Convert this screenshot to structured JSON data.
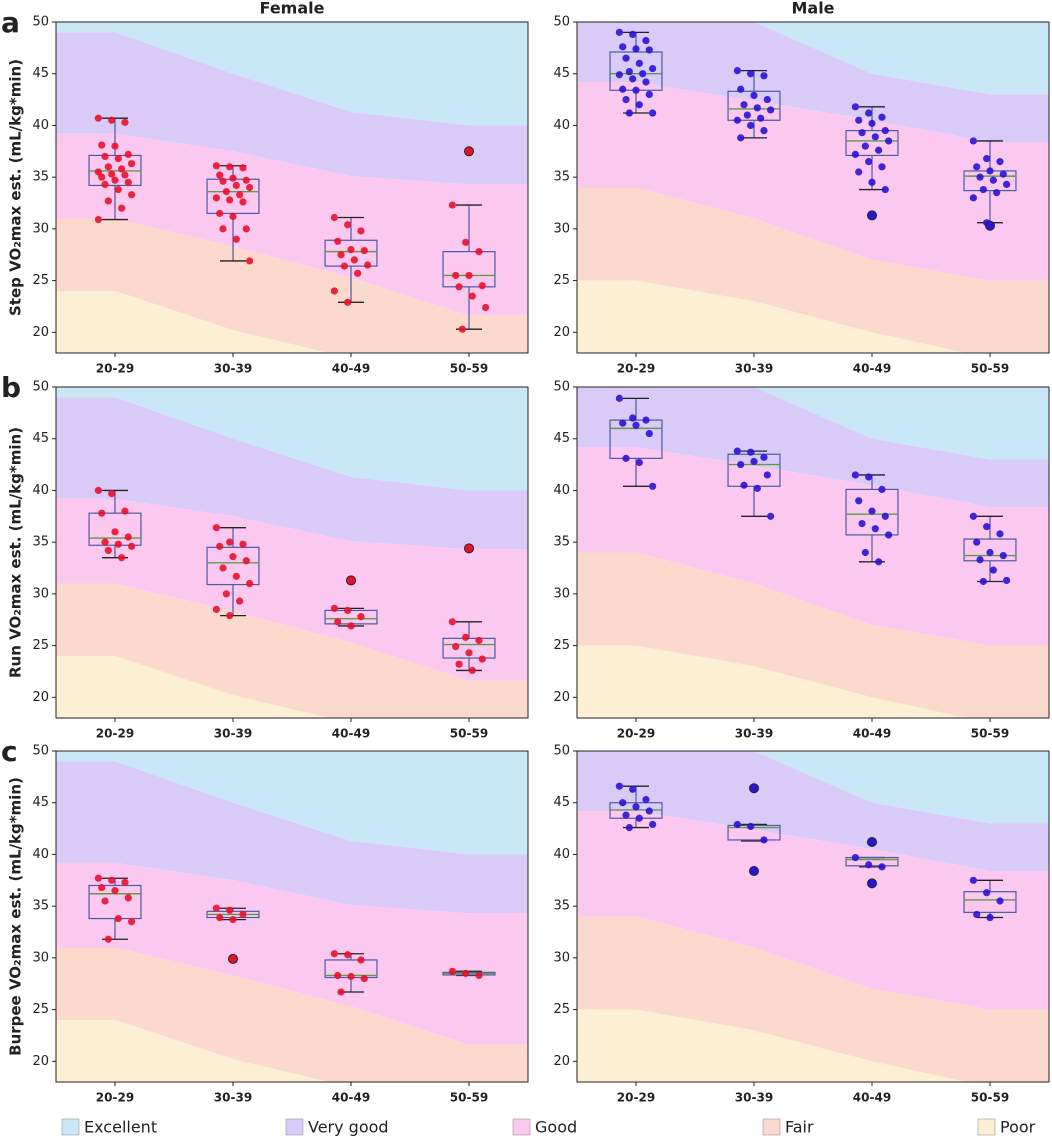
{
  "legend": [
    {
      "name": "Excellent",
      "color": "#c9e7f6"
    },
    {
      "name": "Very good",
      "color": "#dacaf8"
    },
    {
      "name": "Good",
      "color": "#fbc9ef"
    },
    {
      "name": "Fair",
      "color": "#fcd9cd"
    },
    {
      "name": "Poor",
      "color": "#fdefd3"
    }
  ],
  "chart_data": [
    {
      "type": "box",
      "panel": "a",
      "title": "Female",
      "ylabel": "Step VO₂max est. (mL/kg*min)",
      "color": "#e8112d",
      "categories": [
        "20-29",
        "30-39",
        "40-49",
        "50-59"
      ],
      "ylim": [
        18,
        50
      ],
      "yticks": [
        20,
        25,
        30,
        35,
        40,
        45,
        50
      ],
      "zones": [
        [
          49,
          45,
          41.3,
          40
        ],
        [
          39.2,
          37.5,
          35.1,
          34.3
        ],
        [
          31,
          28.3,
          25.3,
          21.6
        ],
        [
          24,
          20.2,
          17.5,
          16
        ]
      ],
      "boxes": [
        {
          "whislo": 30.9,
          "q1": 34.2,
          "med": 35.6,
          "q3": 37.1,
          "whishi": 40.7,
          "points": [
            40.7,
            40.5,
            40.3,
            38.1,
            38,
            37.2,
            37,
            36.8,
            36.3,
            36,
            35.8,
            35.5,
            35.3,
            35.2,
            35,
            34.7,
            34.5,
            34.3,
            33.8,
            33.3,
            32.7,
            32,
            30.9
          ],
          "outliers": []
        },
        {
          "whislo": 26.9,
          "q1": 31.5,
          "med": 33.6,
          "q3": 34.8,
          "whishi": 36.1,
          "points": [
            36.1,
            36,
            35.9,
            35.2,
            34.9,
            34.7,
            34.6,
            34.2,
            34,
            33.6,
            33.3,
            33,
            32.8,
            32.6,
            31.5,
            31.2,
            30,
            30,
            29,
            26.9
          ],
          "outliers": []
        },
        {
          "whislo": 22.9,
          "q1": 26.4,
          "med": 27.8,
          "q3": 28.9,
          "whishi": 31.1,
          "points": [
            31.1,
            30.4,
            29.8,
            28.8,
            28,
            27.9,
            27.5,
            27,
            26.5,
            26.4,
            25.7,
            24,
            22.9
          ],
          "outliers": []
        },
        {
          "whislo": 20.3,
          "q1": 24.4,
          "med": 25.5,
          "q3": 27.8,
          "whishi": 32.3,
          "points": [
            32.3,
            28.7,
            27.8,
            25.5,
            25.5,
            24.5,
            24.4,
            23.5,
            22.4,
            20.3
          ],
          "outliers": [
            37.5
          ]
        }
      ]
    },
    {
      "type": "box",
      "title": "Male",
      "color": "#2b12d4",
      "categories": [
        "20-29",
        "30-39",
        "40-49",
        "50-59"
      ],
      "ylim": [
        18,
        50
      ],
      "yticks": [
        20,
        25,
        30,
        35,
        40,
        45,
        50
      ],
      "zones": [
        [
          53,
          50,
          45,
          43
        ],
        [
          44.2,
          42.4,
          40.5,
          38.4
        ],
        [
          34,
          31,
          27,
          25
        ],
        [
          25,
          23,
          20,
          17.5
        ]
      ],
      "boxes": [
        {
          "whislo": 41.2,
          "q1": 43.4,
          "med": 45,
          "q3": 47.1,
          "whishi": 49,
          "points": [
            49,
            48.8,
            48.2,
            47.6,
            47.4,
            47.3,
            46.5,
            46,
            45.5,
            45.2,
            45,
            44.9,
            44.5,
            44.2,
            43.5,
            43.4,
            43,
            42.5,
            42,
            41.2,
            41.2
          ],
          "outliers": []
        },
        {
          "whislo": 38.8,
          "q1": 40.5,
          "med": 41.6,
          "q3": 43.3,
          "whishi": 45.3,
          "points": [
            45.3,
            45,
            44.8,
            43.5,
            42.9,
            42.5,
            42,
            41.7,
            41.5,
            41,
            40.7,
            40.5,
            40,
            39.5,
            38.8
          ],
          "outliers": []
        },
        {
          "whislo": 33.8,
          "q1": 37.1,
          "med": 38.5,
          "q3": 39.5,
          "whishi": 41.8,
          "points": [
            41.8,
            41.2,
            40.8,
            40.5,
            40.2,
            39.5,
            39.3,
            38.9,
            38.5,
            38,
            37.6,
            37.2,
            36.5,
            36,
            35.5,
            34.5,
            33.8
          ],
          "outliers": [
            31.3
          ]
        },
        {
          "whislo": 30.6,
          "q1": 33.7,
          "med": 35.1,
          "q3": 35.6,
          "whishi": 38.5,
          "points": [
            38.5,
            36.8,
            36.5,
            36,
            35.6,
            35.3,
            35,
            34.7,
            34.3,
            33.8,
            33.5,
            33,
            30.6
          ],
          "outliers": [
            30.3
          ]
        }
      ]
    },
    {
      "type": "box",
      "panel": "b",
      "ylabel": "Run VO₂max est. (mL/kg*min)",
      "color": "#e8112d",
      "categories": [
        "20-29",
        "30-39",
        "40-49",
        "50-59"
      ],
      "ylim": [
        18,
        50
      ],
      "yticks": [
        20,
        25,
        30,
        35,
        40,
        45,
        50
      ],
      "zones": [
        [
          49,
          45,
          41.3,
          40
        ],
        [
          39.2,
          37.5,
          35.1,
          34.3
        ],
        [
          31,
          28.3,
          25.3,
          21.6
        ],
        [
          24,
          20.2,
          17.5,
          16
        ]
      ],
      "boxes": [
        {
          "whislo": 33.5,
          "q1": 34.7,
          "med": 35.4,
          "q3": 37.8,
          "whishi": 40,
          "points": [
            40,
            39.7,
            38,
            37.8,
            36,
            35.5,
            35,
            34.8,
            34.6,
            34.2,
            33.5
          ],
          "outliers": []
        },
        {
          "whislo": 27.9,
          "q1": 30.9,
          "med": 33,
          "q3": 34.5,
          "whishi": 36.4,
          "points": [
            36.4,
            35,
            34.8,
            34.6,
            33.6,
            33.2,
            32.5,
            31.7,
            31,
            30,
            29.3,
            28.5,
            27.9
          ],
          "outliers": []
        },
        {
          "whislo": 26.9,
          "q1": 27.1,
          "med": 27.6,
          "q3": 28.4,
          "whishi": 28.6,
          "points": [
            28.6,
            28.4,
            27.8,
            27.3,
            26.9
          ],
          "outliers": [
            31.3
          ]
        },
        {
          "whislo": 22.6,
          "q1": 23.8,
          "med": 25.1,
          "q3": 25.7,
          "whishi": 27.3,
          "points": [
            27.3,
            25.8,
            25.5,
            24.9,
            24.3,
            23.7,
            23.2,
            22.6
          ],
          "outliers": [
            34.4
          ]
        }
      ]
    },
    {
      "type": "box",
      "color": "#2b12d4",
      "categories": [
        "20-29",
        "30-39",
        "40-49",
        "50-59"
      ],
      "ylim": [
        18,
        50
      ],
      "yticks": [
        20,
        25,
        30,
        35,
        40,
        45,
        50
      ],
      "zones": [
        [
          53,
          50,
          45,
          43
        ],
        [
          44.2,
          42.4,
          40.5,
          38.4
        ],
        [
          34,
          31,
          27,
          25
        ],
        [
          25,
          23,
          20,
          17.5
        ]
      ],
      "boxes": [
        {
          "whislo": 40.4,
          "q1": 43.1,
          "med": 46,
          "q3": 46.8,
          "whishi": 48.9,
          "points": [
            48.9,
            47,
            46.8,
            46.5,
            46.3,
            45.5,
            43.1,
            42.7,
            40.4
          ],
          "outliers": []
        },
        {
          "whislo": 37.5,
          "q1": 40.4,
          "med": 42.5,
          "q3": 43.5,
          "whishi": 43.8,
          "points": [
            43.8,
            43.7,
            43.2,
            42.5,
            42.8,
            41.5,
            40.5,
            40.2,
            37.5
          ],
          "outliers": []
        },
        {
          "whislo": 33.1,
          "q1": 35.7,
          "med": 37.7,
          "q3": 40.1,
          "whishi": 41.5,
          "points": [
            41.5,
            41.3,
            40.1,
            39,
            38,
            37.5,
            36.8,
            36.3,
            35.7,
            34,
            33.1
          ],
          "outliers": []
        },
        {
          "whislo": 31.2,
          "q1": 33.2,
          "med": 33.7,
          "q3": 35.3,
          "whishi": 37.5,
          "points": [
            37.5,
            36.5,
            35.8,
            35,
            34,
            33.7,
            33.3,
            32.3,
            31.3,
            31.2
          ],
          "outliers": []
        }
      ]
    },
    {
      "type": "box",
      "panel": "c",
      "ylabel": "Burpee VO₂max est. (mL/kg*min)",
      "color": "#e8112d",
      "categories": [
        "20-29",
        "30-39",
        "40-49",
        "50-59"
      ],
      "ylim": [
        18,
        50
      ],
      "yticks": [
        20,
        25,
        30,
        35,
        40,
        45,
        50
      ],
      "zones": [
        [
          49,
          45,
          41.3,
          40
        ],
        [
          39.2,
          37.5,
          35.1,
          34.3
        ],
        [
          31,
          28.3,
          25.3,
          21.6
        ],
        [
          24,
          20.2,
          17.5,
          16
        ]
      ],
      "boxes": [
        {
          "whislo": 31.8,
          "q1": 33.8,
          "med": 36.2,
          "q3": 37,
          "whishi": 37.7,
          "points": [
            37.7,
            37.5,
            37.3,
            36.8,
            36.5,
            35.8,
            35.5,
            33.8,
            33.5,
            31.8
          ],
          "outliers": []
        },
        {
          "whislo": 33.7,
          "q1": 33.9,
          "med": 34.2,
          "q3": 34.5,
          "whishi": 34.8,
          "points": [
            34.8,
            34.6,
            34.2,
            33.9,
            33.7
          ],
          "outliers": [
            29.9
          ]
        },
        {
          "whislo": 26.7,
          "q1": 28.1,
          "med": 28.3,
          "q3": 29.8,
          "whishi": 30.4,
          "points": [
            30.4,
            30.3,
            29.8,
            28.3,
            28.2,
            28,
            26.7
          ],
          "outliers": []
        },
        {
          "whislo": 28.3,
          "q1": 28.35,
          "med": 28.5,
          "q3": 28.6,
          "whishi": 28.7,
          "points": [
            28.7,
            28.5,
            28.3
          ],
          "outliers": []
        }
      ]
    },
    {
      "type": "box",
      "color": "#2b12d4",
      "categories": [
        "20-29",
        "30-39",
        "40-49",
        "50-59"
      ],
      "ylim": [
        18,
        50
      ],
      "yticks": [
        20,
        25,
        30,
        35,
        40,
        45,
        50
      ],
      "zones": [
        [
          53,
          50,
          45,
          43
        ],
        [
          44.2,
          42.4,
          40.5,
          38.4
        ],
        [
          34,
          31,
          27,
          25
        ],
        [
          25,
          23,
          20,
          17.5
        ]
      ],
      "boxes": [
        {
          "whislo": 42.6,
          "q1": 43.5,
          "med": 44.3,
          "q3": 45,
          "whishi": 46.6,
          "points": [
            46.6,
            46.3,
            45.3,
            45,
            44.6,
            44.2,
            43.8,
            43.5,
            42.9,
            42.6
          ],
          "outliers": []
        },
        {
          "whislo": 41.3,
          "q1": 41.4,
          "med": 42.6,
          "q3": 42.8,
          "whishi": 42.9,
          "points": [
            42.9,
            42.7,
            41.4
          ],
          "outliers": [
            46.4,
            38.4
          ]
        },
        {
          "whislo": 38.8,
          "q1": 38.9,
          "med": 39.5,
          "q3": 39.7,
          "whishi": 39.7,
          "points": [
            39.7,
            39,
            38.8
          ],
          "outliers": [
            41.2,
            37.2
          ]
        },
        {
          "whislo": 33.9,
          "q1": 34.4,
          "med": 35.6,
          "q3": 36.4,
          "whishi": 37.5,
          "points": [
            37.5,
            36.3,
            35.5,
            34.2,
            33.9
          ],
          "outliers": []
        }
      ]
    }
  ]
}
